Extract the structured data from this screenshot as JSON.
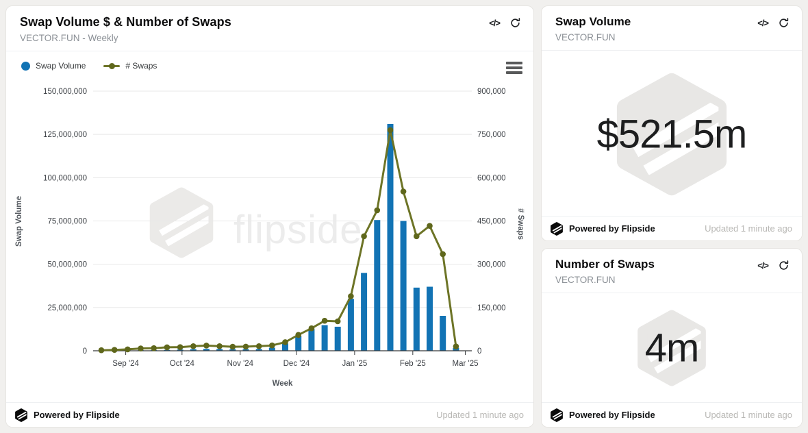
{
  "icons": {
    "code": "</>"
  },
  "main_card": {
    "title": "Swap Volume $ & Number of Swaps",
    "subtitle": "VECTOR.FUN - Weekly",
    "watermark_text": "flipside",
    "footer": {
      "powered_by": "Powered by Flipside",
      "updated": "Updated 1 minute ago"
    }
  },
  "stat_cards": [
    {
      "title": "Swap Volume",
      "subtitle": "VECTOR.FUN",
      "value": "$521.5m",
      "footer": {
        "powered_by": "Powered by Flipside",
        "updated": "Updated 1 minute ago"
      }
    },
    {
      "title": "Number of Swaps",
      "subtitle": "VECTOR.FUN",
      "value": "4m",
      "footer": {
        "powered_by": "Powered by Flipside",
        "updated": "Updated 1 minute ago"
      }
    }
  ],
  "chart_data": {
    "type": "combo-bar-line",
    "title": "Swap Volume $ & Number of Swaps",
    "subtitle": "VECTOR.FUN - Weekly",
    "x_axis": {
      "title": "Week",
      "start_date": "2024-08-19",
      "tick_labels": [
        "Sep '24",
        "Oct '24",
        "Nov '24",
        "Dec '24",
        "Jan '25",
        "Feb '25",
        "Mar '25"
      ],
      "tick_dates": [
        "2024-09-01",
        "2024-10-01",
        "2024-11-01",
        "2024-12-01",
        "2025-01-01",
        "2025-02-01",
        "2025-03-01"
      ]
    },
    "left_axis": {
      "title": "Swap Volume",
      "min": 0,
      "max": 150000000,
      "tick_step": 25000000
    },
    "right_axis": {
      "title": "# Swaps",
      "min": 0,
      "max": 900000,
      "tick_step": 150000
    },
    "legend_position": "top-left",
    "grid": true,
    "weeks": [
      "2024-08-19",
      "2024-08-26",
      "2024-09-02",
      "2024-09-09",
      "2024-09-16",
      "2024-09-23",
      "2024-09-30",
      "2024-10-07",
      "2024-10-14",
      "2024-10-21",
      "2024-10-28",
      "2024-11-04",
      "2024-11-11",
      "2024-11-18",
      "2024-11-25",
      "2024-12-02",
      "2024-12-09",
      "2024-12-16",
      "2024-12-23",
      "2024-12-30",
      "2025-01-06",
      "2025-01-13",
      "2025-01-20",
      "2025-01-27",
      "2025-02-03",
      "2025-02-10",
      "2025-02-17",
      "2025-02-24"
    ],
    "series": [
      {
        "name": "Swap Volume",
        "type": "column",
        "axis": "left",
        "color": "#1273b4",
        "values": [
          120000,
          180000,
          250000,
          300000,
          350000,
          500000,
          700000,
          900000,
          1100000,
          1000000,
          900000,
          900000,
          1000000,
          1800000,
          4200000,
          8700000,
          12600000,
          14800000,
          13900000,
          30000000,
          45000000,
          75500000,
          131000000,
          75000000,
          36500000,
          37000000,
          20200000,
          1600000
        ]
      },
      {
        "name": "# Swaps",
        "type": "line",
        "axis": "right",
        "color": "#6d7426",
        "marker_color": "#5f671c",
        "values": [
          2000,
          3000,
          5000,
          8000,
          9000,
          12000,
          12500,
          16000,
          18000,
          16000,
          14000,
          14500,
          16000,
          18500,
          30000,
          55000,
          78000,
          104000,
          102000,
          189000,
          397000,
          487000,
          765000,
          552000,
          397000,
          433000,
          335000,
          15000
        ]
      }
    ]
  }
}
